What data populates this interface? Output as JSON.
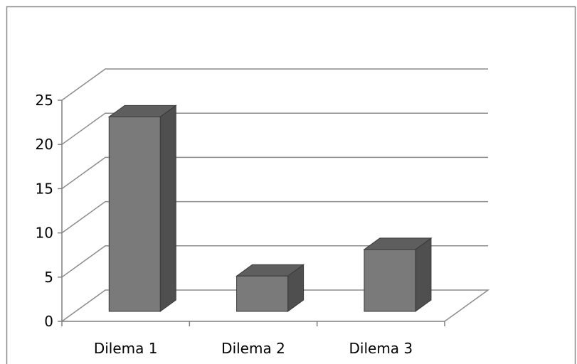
{
  "chart_data": {
    "type": "bar",
    "style": "3d-column",
    "categories": [
      "Dilema 1",
      "Dilema 2",
      "Dilema 3"
    ],
    "values": [
      22,
      4,
      7
    ],
    "ylim": [
      0,
      25
    ],
    "yticks": [
      0,
      5,
      10,
      15,
      20,
      25
    ],
    "ytick_labels": [
      "0",
      "5",
      "10",
      "15",
      "20",
      "25"
    ],
    "title": "",
    "xlabel": "",
    "ylabel": "",
    "grid": true,
    "legend": "none",
    "colors": {
      "bar_front": "#7a7a7a",
      "bar_side": "#4f4f4f",
      "bar_top": "#5e5e5e",
      "bar_edge": "#3a3a3a",
      "gridline": "#8c8c8c",
      "axis": "#7f7f7f",
      "frame": "#8a8a8a"
    }
  }
}
